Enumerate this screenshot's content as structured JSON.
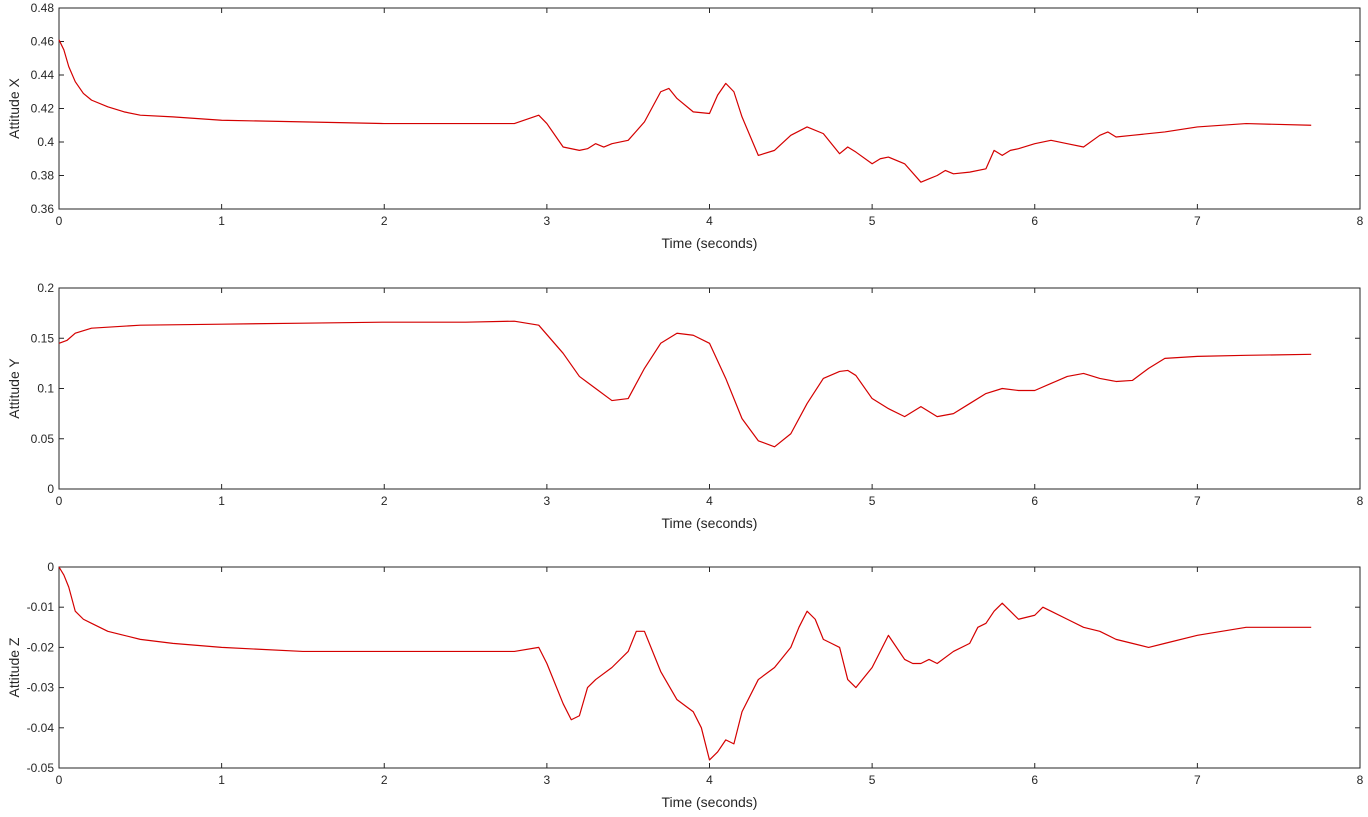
{
  "chart_data": [
    {
      "type": "line",
      "xlabel": "Time (seconds)",
      "ylabel": "Attitude X",
      "xlim": [
        0,
        8
      ],
      "ylim": [
        0.36,
        0.48
      ],
      "xticks": [
        "0",
        "1",
        "2",
        "3",
        "4",
        "5",
        "6",
        "7",
        "8"
      ],
      "yticks": [
        "0.36",
        "0.38",
        "0.4",
        "0.42",
        "0.44",
        "0.46",
        "0.48"
      ],
      "grid": false,
      "line_color": "#d40000",
      "series": [
        {
          "x": [
            0,
            0.03,
            0.06,
            0.1,
            0.15,
            0.2,
            0.3,
            0.4,
            0.5,
            0.7,
            1.0,
            1.5,
            2.0,
            2.5,
            2.8,
            2.95,
            3.0,
            3.1,
            3.2,
            3.25,
            3.3,
            3.35,
            3.4,
            3.5,
            3.6,
            3.7,
            3.75,
            3.8,
            3.9,
            4.0,
            4.05,
            4.1,
            4.15,
            4.2,
            4.3,
            4.4,
            4.5,
            4.6,
            4.7,
            4.8,
            4.85,
            4.9,
            5.0,
            5.05,
            5.1,
            5.2,
            5.3,
            5.35,
            5.4,
            5.45,
            5.5,
            5.6,
            5.7,
            5.75,
            5.8,
            5.85,
            5.9,
            6.0,
            6.1,
            6.2,
            6.3,
            6.4,
            6.45,
            6.5,
            6.6,
            6.8,
            7.0,
            7.3,
            7.7
          ],
          "y": [
            0.461,
            0.455,
            0.445,
            0.436,
            0.429,
            0.425,
            0.421,
            0.418,
            0.416,
            0.415,
            0.413,
            0.412,
            0.411,
            0.411,
            0.411,
            0.416,
            0.411,
            0.397,
            0.395,
            0.396,
            0.399,
            0.397,
            0.399,
            0.401,
            0.412,
            0.43,
            0.432,
            0.426,
            0.418,
            0.417,
            0.428,
            0.435,
            0.43,
            0.415,
            0.392,
            0.395,
            0.404,
            0.409,
            0.405,
            0.393,
            0.397,
            0.394,
            0.387,
            0.39,
            0.391,
            0.387,
            0.376,
            0.378,
            0.38,
            0.383,
            0.381,
            0.382,
            0.384,
            0.395,
            0.392,
            0.395,
            0.396,
            0.399,
            0.401,
            0.399,
            0.397,
            0.404,
            0.406,
            0.403,
            0.404,
            0.406,
            0.409,
            0.411,
            0.41
          ]
        }
      ]
    },
    {
      "type": "line",
      "xlabel": "Time (seconds)",
      "ylabel": "Attitude Y",
      "xlim": [
        0,
        8
      ],
      "ylim": [
        0,
        0.2
      ],
      "xticks": [
        "0",
        "1",
        "2",
        "3",
        "4",
        "5",
        "6",
        "7",
        "8"
      ],
      "yticks": [
        "0",
        "0.05",
        "0.1",
        "0.15",
        "0.2"
      ],
      "grid": false,
      "line_color": "#d40000",
      "series": [
        {
          "x": [
            0,
            0.05,
            0.1,
            0.2,
            0.5,
            1.0,
            1.5,
            2.0,
            2.5,
            2.8,
            2.95,
            3.1,
            3.2,
            3.3,
            3.4,
            3.5,
            3.6,
            3.7,
            3.8,
            3.9,
            4.0,
            4.1,
            4.2,
            4.3,
            4.4,
            4.5,
            4.6,
            4.7,
            4.8,
            4.85,
            4.9,
            5.0,
            5.1,
            5.2,
            5.3,
            5.4,
            5.5,
            5.6,
            5.7,
            5.8,
            5.9,
            6.0,
            6.1,
            6.2,
            6.3,
            6.4,
            6.5,
            6.6,
            6.7,
            6.8,
            7.0,
            7.3,
            7.7
          ],
          "y": [
            0.145,
            0.148,
            0.155,
            0.16,
            0.163,
            0.164,
            0.165,
            0.166,
            0.166,
            0.167,
            0.163,
            0.135,
            0.112,
            0.1,
            0.088,
            0.09,
            0.12,
            0.145,
            0.155,
            0.153,
            0.145,
            0.11,
            0.07,
            0.048,
            0.042,
            0.055,
            0.085,
            0.11,
            0.117,
            0.118,
            0.113,
            0.09,
            0.08,
            0.072,
            0.082,
            0.072,
            0.075,
            0.085,
            0.095,
            0.1,
            0.098,
            0.098,
            0.105,
            0.112,
            0.115,
            0.11,
            0.107,
            0.108,
            0.12,
            0.13,
            0.132,
            0.133,
            0.134
          ]
        }
      ]
    },
    {
      "type": "line",
      "xlabel": "Time (seconds)",
      "ylabel": "Attitude Z",
      "xlim": [
        0,
        8
      ],
      "ylim": [
        -0.05,
        0
      ],
      "xticks": [
        "0",
        "1",
        "2",
        "3",
        "4",
        "5",
        "6",
        "7",
        "8"
      ],
      "yticks": [
        "-0.05",
        "-0.04",
        "-0.03",
        "-0.02",
        "-0.01",
        "0"
      ],
      "grid": false,
      "line_color": "#d40000",
      "series": [
        {
          "x": [
            0,
            0.03,
            0.06,
            0.1,
            0.15,
            0.2,
            0.3,
            0.5,
            0.7,
            1.0,
            1.5,
            2.0,
            2.5,
            2.8,
            2.95,
            3.0,
            3.1,
            3.15,
            3.2,
            3.25,
            3.3,
            3.4,
            3.5,
            3.55,
            3.6,
            3.7,
            3.8,
            3.9,
            3.95,
            4.0,
            4.05,
            4.1,
            4.15,
            4.2,
            4.3,
            4.4,
            4.5,
            4.55,
            4.6,
            4.65,
            4.7,
            4.75,
            4.8,
            4.85,
            4.9,
            5.0,
            5.1,
            5.2,
            5.25,
            5.3,
            5.35,
            5.4,
            5.5,
            5.6,
            5.65,
            5.7,
            5.75,
            5.8,
            5.85,
            5.9,
            6.0,
            6.05,
            6.1,
            6.2,
            6.3,
            6.4,
            6.5,
            6.6,
            6.7,
            6.8,
            7.0,
            7.3,
            7.7
          ],
          "y": [
            0.0,
            -0.002,
            -0.005,
            -0.011,
            -0.013,
            -0.014,
            -0.016,
            -0.018,
            -0.019,
            -0.02,
            -0.021,
            -0.021,
            -0.021,
            -0.021,
            -0.02,
            -0.024,
            -0.034,
            -0.038,
            -0.037,
            -0.03,
            -0.028,
            -0.025,
            -0.021,
            -0.016,
            -0.016,
            -0.026,
            -0.033,
            -0.036,
            -0.04,
            -0.048,
            -0.046,
            -0.043,
            -0.044,
            -0.036,
            -0.028,
            -0.025,
            -0.02,
            -0.015,
            -0.011,
            -0.013,
            -0.018,
            -0.019,
            -0.02,
            -0.028,
            -0.03,
            -0.025,
            -0.017,
            -0.023,
            -0.024,
            -0.024,
            -0.023,
            -0.024,
            -0.021,
            -0.019,
            -0.015,
            -0.014,
            -0.011,
            -0.009,
            -0.011,
            -0.013,
            -0.012,
            -0.01,
            -0.011,
            -0.013,
            -0.015,
            -0.016,
            -0.018,
            -0.019,
            -0.02,
            -0.019,
            -0.017,
            -0.015,
            -0.015
          ]
        }
      ]
    }
  ]
}
